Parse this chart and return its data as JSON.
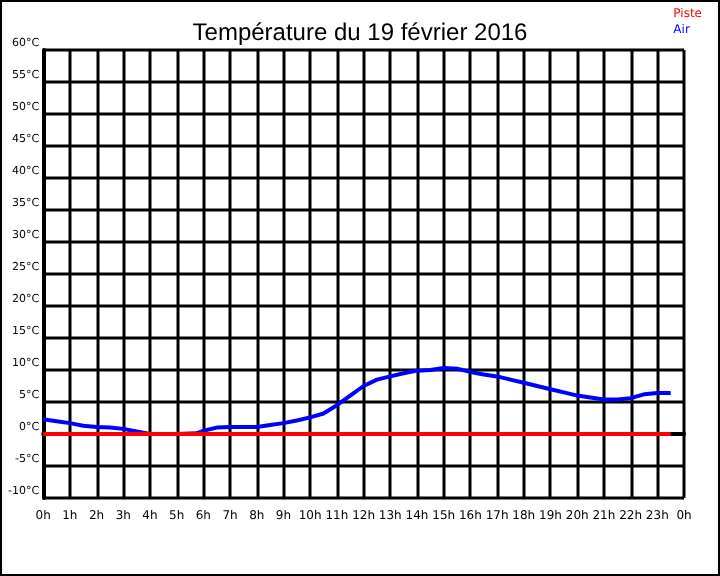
{
  "chart_data": {
    "type": "line",
    "title": "Température du 19 février 2016",
    "x": [
      "2016-02-19T00:00",
      "2016-02-19T00:30",
      "2016-02-19T01:00",
      "2016-02-19T01:30",
      "2016-02-19T02:00",
      "2016-02-19T02:30",
      "2016-02-19T03:00",
      "2016-02-19T03:30",
      "2016-02-19T04:00",
      "2016-02-19T05:00",
      "2016-02-19T05:45",
      "2016-02-19T06:00",
      "2016-02-19T06:30",
      "2016-02-19T07:00",
      "2016-02-19T08:00",
      "2016-02-19T08:30",
      "2016-02-19T09:00",
      "2016-02-19T09:30",
      "2016-02-19T10:00",
      "2016-02-19T10:30",
      "2016-02-19T11:00",
      "2016-02-19T11:30",
      "2016-02-19T12:00",
      "2016-02-19T12:30",
      "2016-02-19T13:00",
      "2016-02-19T13:30",
      "2016-02-19T14:00",
      "2016-02-19T14:30",
      "2016-02-19T15:00",
      "2016-02-19T15:30",
      "2016-02-19T16:00",
      "2016-02-19T16:30",
      "2016-02-19T17:00",
      "2016-02-19T17:30",
      "2016-02-19T18:00",
      "2016-02-19T18:30",
      "2016-02-19T19:00",
      "2016-02-19T19:30",
      "2016-02-19T20:00",
      "2016-02-19T20:30",
      "2016-02-19T21:00",
      "2016-02-19T21:30",
      "2016-02-19T22:00",
      "2016-02-19T22:30",
      "2016-02-19T23:00",
      "2016-02-19T23:30"
    ],
    "series": [
      {
        "name": "Piste",
        "color": "#ff0000",
        "x": [
          "2016-02-19T00:00",
          "2016-02-19T23:30"
        ],
        "values": [
          0,
          0
        ]
      },
      {
        "name": "Air",
        "color": "#0000ff",
        "values": [
          2.3,
          2,
          1.7,
          1.3,
          1.1,
          1,
          0.8,
          0.4,
          0,
          0,
          0.1,
          0.5,
          1,
          1.1,
          1.1,
          1.4,
          1.7,
          2.1,
          2.6,
          3.2,
          4.5,
          6,
          7.5,
          8.5,
          9,
          9.5,
          9.9,
          10,
          10.3,
          10.2,
          9.7,
          9.3,
          9,
          8.5,
          8,
          7.5,
          7,
          6.5,
          6,
          5.7,
          5.4,
          5.4,
          5.6,
          6.2,
          6.4,
          6.4
        ]
      }
    ],
    "xlim": [
      "2016-02-19T00:00",
      "2016-02-20T00:00"
    ],
    "xticks": [
      {
        "value": "2016-02-19T00:00",
        "label": "0h"
      },
      {
        "value": "2016-02-19T01:00",
        "label": "1h"
      },
      {
        "value": "2016-02-19T02:00",
        "label": "2h"
      },
      {
        "value": "2016-02-19T03:00",
        "label": "3h"
      },
      {
        "value": "2016-02-19T04:00",
        "label": "4h"
      },
      {
        "value": "2016-02-19T05:00",
        "label": "5h"
      },
      {
        "value": "2016-02-19T06:00",
        "label": "6h"
      },
      {
        "value": "2016-02-19T07:00",
        "label": "7h"
      },
      {
        "value": "2016-02-19T08:00",
        "label": "8h"
      },
      {
        "value": "2016-02-19T09:00",
        "label": "9h"
      },
      {
        "value": "2016-02-19T10:00",
        "label": "10h"
      },
      {
        "value": "2016-02-19T11:00",
        "label": "11h"
      },
      {
        "value": "2016-02-19T12:00",
        "label": "12h"
      },
      {
        "value": "2016-02-19T13:00",
        "label": "13h"
      },
      {
        "value": "2016-02-19T14:00",
        "label": "14h"
      },
      {
        "value": "2016-02-19T15:00",
        "label": "15h"
      },
      {
        "value": "2016-02-19T16:00",
        "label": "16h"
      },
      {
        "value": "2016-02-19T17:00",
        "label": "17h"
      },
      {
        "value": "2016-02-19T18:00",
        "label": "18h"
      },
      {
        "value": "2016-02-19T19:00",
        "label": "19h"
      },
      {
        "value": "2016-02-19T20:00",
        "label": "20h"
      },
      {
        "value": "2016-02-19T21:00",
        "label": "21h"
      },
      {
        "value": "2016-02-19T22:00",
        "label": "22h"
      },
      {
        "value": "2016-02-19T23:00",
        "label": "23h"
      },
      {
        "value": "2016-02-20T00:00",
        "label": "0h"
      }
    ],
    "ylim": [
      -10,
      60
    ],
    "yticks": [
      {
        "value": -10,
        "label": "-10°C"
      },
      {
        "value": -5,
        "label": "-5°C"
      },
      {
        "value": 0,
        "label": "0°C"
      },
      {
        "value": 5,
        "label": "5°C"
      },
      {
        "value": 10,
        "label": "10°C"
      },
      {
        "value": 15,
        "label": "15°C"
      },
      {
        "value": 20,
        "label": "20°C"
      },
      {
        "value": 25,
        "label": "25°C"
      },
      {
        "value": 30,
        "label": "30°C"
      },
      {
        "value": 35,
        "label": "35°C"
      },
      {
        "value": 40,
        "label": "40°C"
      },
      {
        "value": 45,
        "label": "45°C"
      },
      {
        "value": 50,
        "label": "50°C"
      },
      {
        "value": 55,
        "label": "55°C"
      },
      {
        "value": 60,
        "label": "60°C"
      }
    ],
    "grid": true,
    "legend": "top right",
    "marker": "none",
    "line_style": "solid"
  }
}
